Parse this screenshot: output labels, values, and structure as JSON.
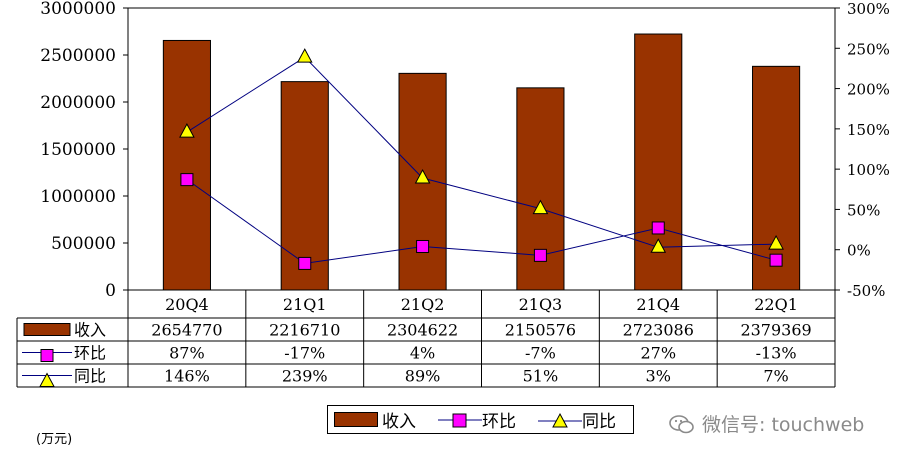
{
  "chart_data": {
    "type": "bar",
    "categories": [
      "20Q4",
      "21Q1",
      "21Q2",
      "21Q3",
      "21Q4",
      "22Q1"
    ],
    "series": [
      {
        "name": "收入",
        "type": "bar",
        "axis": "left",
        "color": "#993300",
        "values": [
          2654770,
          2216710,
          2304622,
          2150576,
          2723086,
          2379369
        ]
      },
      {
        "name": "环比",
        "type": "line",
        "axis": "right",
        "marker": "square",
        "color": "#FF00FF",
        "values": [
          87,
          -17,
          4,
          -7,
          27,
          -13
        ]
      },
      {
        "name": "同比",
        "type": "line",
        "axis": "right",
        "marker": "triangle",
        "color": "#FFFF00",
        "values": [
          146,
          239,
          89,
          51,
          3,
          7
        ]
      }
    ],
    "left_axis": {
      "ylim": [
        0,
        3000000
      ],
      "ticks": [
        "0",
        "500000",
        "1000000",
        "1500000",
        "2000000",
        "2500000",
        "3000000"
      ]
    },
    "right_axis": {
      "ylim": [
        -50,
        300
      ],
      "ticks": [
        "-50%",
        "0%",
        "50%",
        "100%",
        "150%",
        "200%",
        "250%",
        "300%"
      ]
    },
    "table": {
      "rows": [
        {
          "label": "收入",
          "cells": [
            "2654770",
            "2216710",
            "2304622",
            "2150576",
            "2723086",
            "2379369"
          ]
        },
        {
          "label": "环比",
          "cells": [
            "87%",
            "-17%",
            "4%",
            "-7%",
            "27%",
            "-13%"
          ]
        },
        {
          "label": "同比",
          "cells": [
            "146%",
            "239%",
            "89%",
            "51%",
            "3%",
            "7%"
          ]
        }
      ]
    },
    "unit_label": "(万元)",
    "legend_placement": "bottom"
  },
  "watermark": {
    "text": "微信号: touchweb",
    "icon": "wechat-icon"
  }
}
